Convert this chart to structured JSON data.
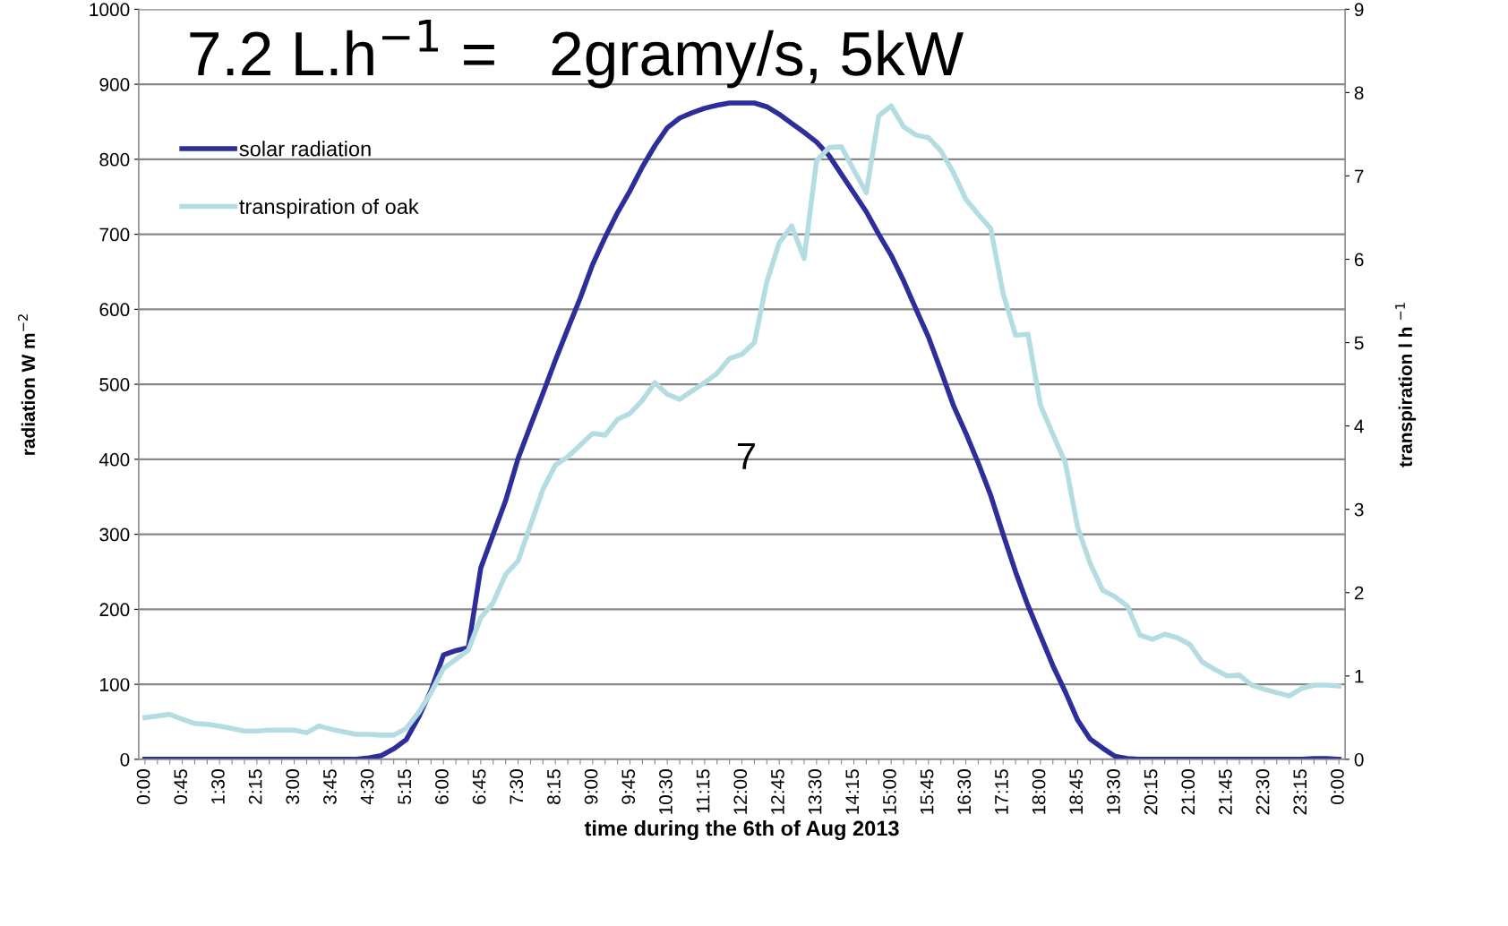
{
  "chart_data": {
    "type": "line",
    "xlabel": "time during the 6th of Aug 2013",
    "ylabel": "radiation W m$^{−2}$",
    "y2label": "transpiration l h $^{−1}$",
    "annotations": [
      "7.2 L.h$^{−1}$ =   2gramy/s, 5kW",
      "7"
    ],
    "categories": [
      "0:00",
      null,
      null,
      "0:45",
      null,
      null,
      "1:30",
      null,
      null,
      "2:15",
      null,
      null,
      "3:00",
      null,
      null,
      "3:45",
      null,
      null,
      "4:30",
      null,
      null,
      "5:15",
      null,
      null,
      "6:00",
      null,
      null,
      "6:45",
      null,
      null,
      "7:30",
      null,
      null,
      "8:15",
      null,
      null,
      "9:00",
      null,
      null,
      "9:45",
      null,
      null,
      "10:30",
      null,
      null,
      "11:15",
      null,
      null,
      "12:00",
      null,
      null,
      "12:45",
      null,
      null,
      "13:30",
      null,
      null,
      "14:15",
      null,
      null,
      "15:00",
      null,
      null,
      "15:45",
      null,
      null,
      "16:30",
      null,
      null,
      "17:15",
      null,
      null,
      "18:00",
      null,
      null,
      "18:45",
      null,
      null,
      "19:30",
      null,
      null,
      "20:15",
      null,
      null,
      "21:00",
      null,
      null,
      "21:45",
      null,
      null,
      "22:30",
      null,
      null,
      "23:15",
      null,
      null,
      "0:00"
    ],
    "series": [
      {
        "name": "solar radiation",
        "color": "#2e2e9a",
        "values": [
          0,
          0,
          0,
          0,
          0,
          0,
          0,
          0,
          0,
          0,
          0,
          0,
          0,
          0,
          0,
          0,
          0,
          0,
          2,
          5,
          14,
          26,
          56,
          92,
          139,
          145,
          149,
          255,
          300,
          345,
          401,
          445,
          488,
          532,
          574,
          615,
          660,
          696,
          729,
          758,
          790,
          818,
          842,
          855,
          862,
          868,
          872,
          875,
          875,
          875,
          870,
          860,
          848,
          836,
          823,
          805,
          780,
          755,
          730,
          700,
          672,
          638,
          600,
          563,
          518,
          472,
          435,
          395,
          352,
          300,
          250,
          205,
          165,
          125,
          90,
          52,
          27,
          15,
          4,
          1,
          0,
          0,
          0,
          0,
          0,
          0,
          0,
          0,
          0,
          0,
          0,
          0,
          0,
          0,
          1,
          1,
          0
        ]
      },
      {
        "name": "transpiration of oak",
        "color": "#b3dde0",
        "axis": "y2",
        "values": [
          0.5,
          0.52,
          0.54,
          0.48,
          0.43,
          0.42,
          0.4,
          0.37,
          0.34,
          0.34,
          0.35,
          0.35,
          0.35,
          0.32,
          0.4,
          0.36,
          0.33,
          0.3,
          0.3,
          0.29,
          0.29,
          0.37,
          0.56,
          0.8,
          1.09,
          1.2,
          1.31,
          1.7,
          1.88,
          2.22,
          2.38,
          2.81,
          3.24,
          3.53,
          3.63,
          3.77,
          3.91,
          3.89,
          4.08,
          4.15,
          4.31,
          4.52,
          4.38,
          4.32,
          4.42,
          4.52,
          4.63,
          4.81,
          4.86,
          5.0,
          5.73,
          6.2,
          6.4,
          6.01,
          7.18,
          7.34,
          7.35,
          7.07,
          6.8,
          7.72,
          7.84,
          7.59,
          7.49,
          7.46,
          7.3,
          7.04,
          6.72,
          6.54,
          6.37,
          5.59,
          5.09,
          5.1,
          4.25,
          3.9,
          3.56,
          2.78,
          2.35,
          2.03,
          1.95,
          1.84,
          1.49,
          1.44,
          1.5,
          1.46,
          1.38,
          1.17,
          1.08,
          1.0,
          1.01,
          0.89,
          0.84,
          0.8,
          0.76,
          0.85,
          0.89,
          0.89,
          0.88
        ]
      }
    ],
    "ylim": [
      0,
      1000
    ],
    "yticks": [
      0,
      100,
      200,
      300,
      400,
      500,
      600,
      700,
      800,
      900,
      1000
    ],
    "y2lim": [
      0,
      9
    ],
    "y2ticks": [
      0,
      1,
      2,
      3,
      4,
      5,
      6,
      7,
      8,
      9
    ],
    "grid": "y",
    "legend": "top left",
    "marker": "none",
    "line_style": "solid"
  }
}
